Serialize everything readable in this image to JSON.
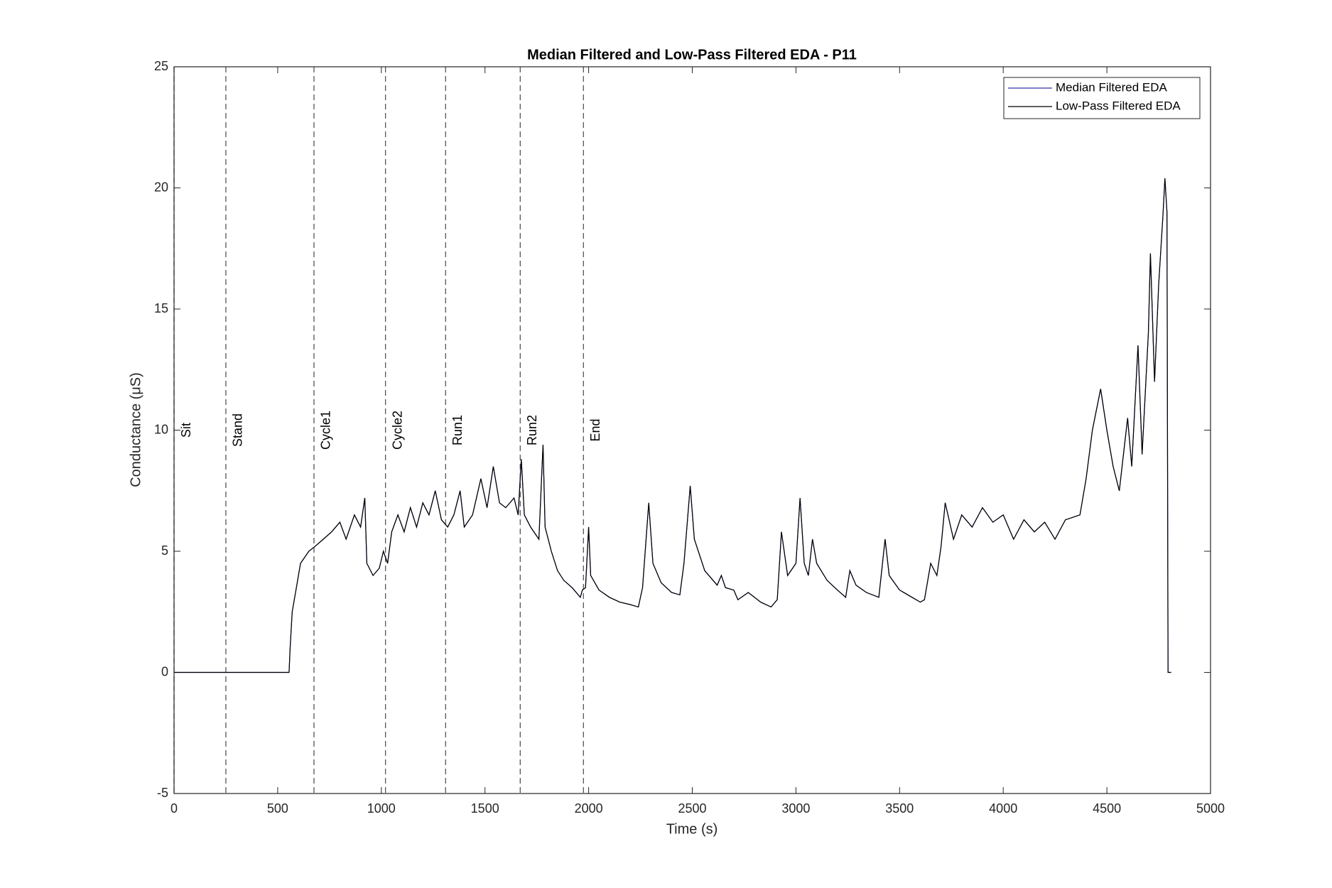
{
  "chart_data": {
    "type": "line",
    "title": "Median Filtered and Low-Pass Filtered EDA - P11",
    "xlabel": "Time (s)",
    "ylabel": "Conductance (μS)",
    "x": [
      0,
      540,
      555,
      560,
      570,
      590,
      610,
      650,
      680,
      720,
      760,
      800,
      830,
      870,
      900,
      920,
      930,
      960,
      990,
      1010,
      1030,
      1050,
      1080,
      1110,
      1140,
      1170,
      1200,
      1230,
      1260,
      1290,
      1320,
      1350,
      1380,
      1400,
      1440,
      1480,
      1510,
      1540,
      1570,
      1600,
      1640,
      1660,
      1675,
      1690,
      1720,
      1760,
      1780,
      1790,
      1820,
      1850,
      1880,
      1920,
      1960,
      1970,
      1985,
      2000,
      2010,
      2050,
      2100,
      2150,
      2200,
      2240,
      2260,
      2290,
      2310,
      2350,
      2400,
      2440,
      2460,
      2490,
      2510,
      2560,
      2620,
      2640,
      2660,
      2700,
      2720,
      2770,
      2830,
      2880,
      2910,
      2930,
      2960,
      3000,
      3020,
      3040,
      3060,
      3080,
      3100,
      3150,
      3200,
      3240,
      3260,
      3290,
      3340,
      3400,
      3430,
      3450,
      3500,
      3560,
      3600,
      3620,
      3650,
      3680,
      3700,
      3720,
      3760,
      3800,
      3850,
      3900,
      3950,
      4000,
      4050,
      4100,
      4150,
      4200,
      4250,
      4300,
      4370,
      4400,
      4430,
      4470,
      4500,
      4530,
      4560,
      4600,
      4620,
      4650,
      4670,
      4700,
      4710,
      4730,
      4750,
      4770,
      4780,
      4790,
      4795,
      4810
    ],
    "series": [
      {
        "name": "Median Filtered EDA",
        "color": "#3333aa",
        "values": [
          0,
          0,
          0,
          1,
          2.5,
          3.5,
          4.5,
          5,
          5.2,
          5.5,
          5.8,
          6.2,
          5.5,
          6.5,
          6,
          7.2,
          4.5,
          4,
          4.3,
          5,
          4.5,
          5.8,
          6.5,
          5.8,
          6.8,
          6,
          7,
          6.5,
          7.5,
          6.3,
          6,
          6.5,
          7.5,
          6,
          6.5,
          8,
          6.8,
          8.5,
          7,
          6.8,
          7.2,
          6.5,
          8.8,
          6.5,
          6,
          5.5,
          9.4,
          6,
          5,
          4.2,
          3.8,
          3.5,
          3.1,
          3.4,
          3.5,
          6,
          4,
          3.4,
          3.1,
          2.9,
          2.8,
          2.7,
          3.5,
          7,
          4.5,
          3.7,
          3.3,
          3.2,
          4.5,
          7.7,
          5.5,
          4.2,
          3.6,
          4,
          3.5,
          3.4,
          3,
          3.3,
          2.9,
          2.7,
          3,
          5.8,
          4,
          4.5,
          7.2,
          4.5,
          4,
          5.5,
          4.5,
          3.8,
          3.4,
          3.1,
          4.2,
          3.6,
          3.3,
          3.1,
          5.5,
          4,
          3.4,
          3.1,
          2.9,
          3,
          4.5,
          4,
          5.2,
          7,
          5.5,
          6.5,
          6,
          6.8,
          6.2,
          6.5,
          5.5,
          6.3,
          5.8,
          6.2,
          5.5,
          6.3,
          6.5,
          8,
          10,
          11.7,
          10,
          8.5,
          7.5,
          10.5,
          8.5,
          13.5,
          9,
          14,
          17.3,
          12,
          16,
          18.8,
          20.4,
          19,
          0,
          0
        ]
      },
      {
        "name": "Low-Pass Filtered EDA",
        "color": "#000000",
        "values": [
          0,
          0,
          0,
          1,
          2.5,
          3.5,
          4.5,
          5,
          5.2,
          5.5,
          5.8,
          6.2,
          5.5,
          6.5,
          6,
          7.2,
          4.5,
          4,
          4.3,
          5,
          4.5,
          5.8,
          6.5,
          5.8,
          6.8,
          6,
          7,
          6.5,
          7.5,
          6.3,
          6,
          6.5,
          7.5,
          6,
          6.5,
          8,
          6.8,
          8.5,
          7,
          6.8,
          7.2,
          6.5,
          8.8,
          6.5,
          6,
          5.5,
          9.4,
          6,
          5,
          4.2,
          3.8,
          3.5,
          3.1,
          3.4,
          3.5,
          6,
          4,
          3.4,
          3.1,
          2.9,
          2.8,
          2.7,
          3.5,
          7,
          4.5,
          3.7,
          3.3,
          3.2,
          4.5,
          7.7,
          5.5,
          4.2,
          3.6,
          4,
          3.5,
          3.4,
          3,
          3.3,
          2.9,
          2.7,
          3,
          5.8,
          4,
          4.5,
          7.2,
          4.5,
          4,
          5.5,
          4.5,
          3.8,
          3.4,
          3.1,
          4.2,
          3.6,
          3.3,
          3.1,
          5.5,
          4,
          3.4,
          3.1,
          2.9,
          3,
          4.5,
          4,
          5.2,
          7,
          5.5,
          6.5,
          6,
          6.8,
          6.2,
          6.5,
          5.5,
          6.3,
          5.8,
          6.2,
          5.5,
          6.3,
          6.5,
          8,
          10,
          11.7,
          10,
          8.5,
          7.5,
          10.5,
          8.5,
          13.5,
          9,
          14,
          17.3,
          12,
          16,
          18.8,
          20.4,
          19,
          0,
          0
        ]
      }
    ],
    "events": [
      {
        "label": "Sit",
        "x": 0
      },
      {
        "label": "Stand",
        "x": 250
      },
      {
        "label": "Cycle1",
        "x": 675
      },
      {
        "label": "Cycle2",
        "x": 1020
      },
      {
        "label": "Run1",
        "x": 1310
      },
      {
        "label": "Run2",
        "x": 1670
      },
      {
        "label": "End",
        "x": 1975
      }
    ],
    "xlim": [
      0,
      5000
    ],
    "xticks": [
      0,
      500,
      1000,
      1500,
      2000,
      2500,
      3000,
      3500,
      4000,
      4500,
      5000
    ],
    "ylim": [
      -5,
      25
    ],
    "yticks": [
      -5,
      0,
      5,
      10,
      15,
      20,
      25
    ],
    "grid": false,
    "legend": "northeast"
  }
}
